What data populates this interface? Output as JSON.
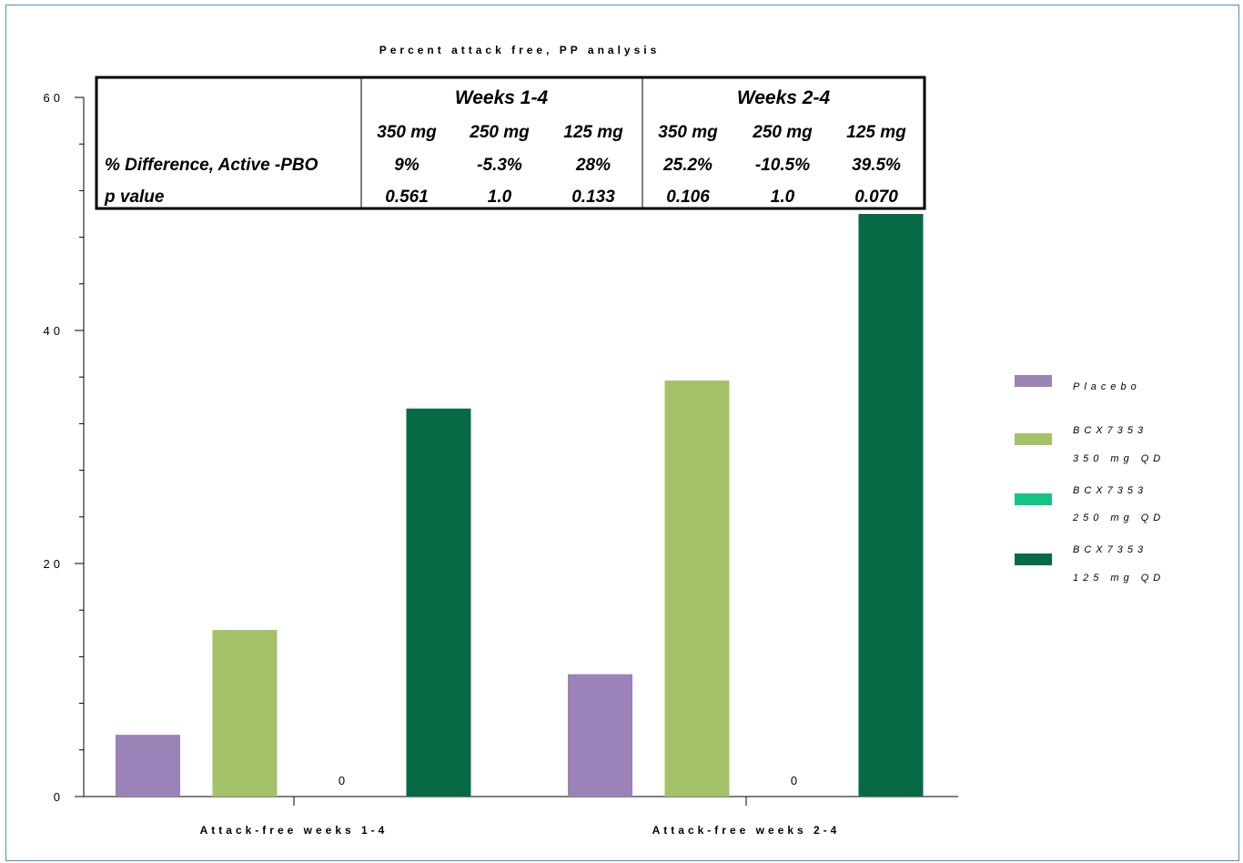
{
  "chart_data": {
    "type": "bar",
    "title": "Percent attack free, PP analysis",
    "categories": [
      "Attack-free weeks 1-4",
      "Attack-free weeks 2-4"
    ],
    "series": [
      {
        "name": "Placebo",
        "color": "#9b82b8",
        "values": [
          5.3,
          10.5
        ]
      },
      {
        "name": "BCX7353 350 mg QD",
        "color": "#a4c268",
        "values": [
          14.3,
          35.7
        ]
      },
      {
        "name": "BCX7353 250 mg QD",
        "color": "#13c482",
        "values": [
          0,
          0
        ]
      },
      {
        "name": "BCX7353 125 mg QD",
        "color": "#066b45",
        "values": [
          33.3,
          50
        ]
      }
    ],
    "zero_labels": [
      "0",
      "0"
    ],
    "ylim": [
      0,
      60
    ],
    "y_ticks": [
      "0",
      "20",
      "40",
      "60"
    ],
    "xlabel": "",
    "ylabel": "",
    "legend_position": "right",
    "legend": [
      {
        "line1": "Placebo",
        "line2": ""
      },
      {
        "line1": "BCX7353",
        "line2": "350 mg QD"
      },
      {
        "line1": "BCX7353",
        "line2": "250 mg QD"
      },
      {
        "line1": "BCX7353",
        "line2": "125 mg QD"
      }
    ],
    "table": {
      "groups": [
        "Weeks 1-4",
        "Weeks 2-4"
      ],
      "doses": [
        "350 mg",
        "250 mg",
        "125 mg",
        "350 mg",
        "250 mg",
        "125 mg"
      ],
      "rows": [
        {
          "label": "% Difference, Active -PBO",
          "values": [
            "9%",
            "-5.3%",
            "28%",
            "25.2%",
            "-10.5%",
            "39.5%"
          ]
        },
        {
          "label": "p value",
          "values": [
            "0.561",
            "1.0",
            "0.133",
            "0.106",
            "1.0",
            "0.070"
          ]
        }
      ]
    }
  }
}
